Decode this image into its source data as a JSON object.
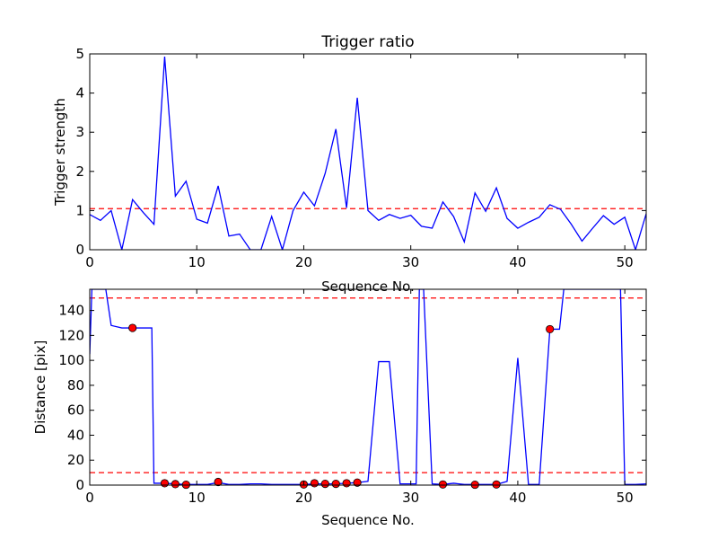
{
  "chart_data": [
    {
      "type": "line",
      "title": "Trigger ratio",
      "xlabel": "Sequence No.",
      "ylabel": "Trigger strength",
      "xlim": [
        0,
        52
      ],
      "ylim": [
        0,
        5
      ],
      "xticks": [
        0,
        10,
        20,
        30,
        40,
        50
      ],
      "yticks": [
        0,
        1,
        2,
        3,
        4,
        5
      ],
      "colors": {
        "line": "#0000ff",
        "threshold": "#ff0000"
      },
      "threshold_lines": [
        1.05
      ],
      "series": [
        {
          "x": [
            0,
            1,
            2,
            3,
            4,
            5,
            6,
            7,
            8,
            9,
            10,
            11,
            12,
            13,
            14,
            15,
            16,
            17,
            18,
            19,
            20,
            21,
            22,
            23,
            24,
            25,
            26,
            27,
            28,
            29,
            30,
            31,
            32,
            33,
            34,
            35,
            36,
            37,
            38,
            39,
            40,
            41,
            42,
            43,
            44,
            45,
            46,
            47,
            48,
            49,
            50,
            51,
            52
          ],
          "values": [
            0.9,
            0.75,
            1.0,
            0.0,
            1.28,
            0.95,
            0.65,
            4.93,
            1.37,
            1.75,
            0.78,
            0.68,
            1.63,
            0.35,
            0.4,
            0.0,
            0.0,
            0.85,
            0.0,
            1.0,
            1.47,
            1.12,
            1.95,
            3.08,
            1.07,
            3.88,
            1.0,
            0.75,
            0.9,
            0.8,
            0.88,
            0.6,
            0.55,
            1.22,
            0.85,
            0.2,
            1.45,
            0.98,
            1.58,
            0.8,
            0.55,
            0.7,
            0.83,
            1.15,
            1.03,
            0.65,
            0.22,
            0.55,
            0.87,
            0.65,
            0.83,
            0.0,
            0.92
          ]
        }
      ]
    },
    {
      "type": "line",
      "title": "",
      "xlabel": "Sequence No.",
      "ylabel": "Distance [pix]",
      "xlim": [
        0,
        52
      ],
      "ylim": [
        0,
        157
      ],
      "xticks": [
        0,
        10,
        20,
        30,
        40,
        50
      ],
      "yticks": [
        0,
        20,
        40,
        60,
        80,
        100,
        120,
        140
      ],
      "colors": {
        "line": "#0000ff",
        "marker": "#ff0000",
        "threshold": "#ff0000"
      },
      "threshold_lines": [
        10,
        150
      ],
      "series": [
        {
          "x": [
            0,
            0.2,
            1.3,
            1.5,
            2,
            3,
            4,
            5,
            5.3,
            5.8,
            6,
            7,
            8,
            9,
            10,
            11,
            12,
            13,
            14,
            15,
            16,
            17,
            18,
            19,
            20,
            21,
            22,
            23,
            24,
            25,
            26,
            27,
            28,
            29,
            30,
            30.5,
            30.8,
            31.2,
            32,
            33,
            34,
            35,
            36,
            37,
            38,
            39,
            40,
            41,
            41.5,
            42,
            43,
            43.5,
            43.9,
            44.3,
            49.2,
            49.6,
            50,
            51,
            52
          ],
          "values": [
            105,
            157,
            157,
            157,
            128,
            126,
            126,
            126,
            126,
            126,
            1.5,
            1.5,
            1,
            0.5,
            0.5,
            0.5,
            2,
            0.5,
            0.5,
            1,
            1,
            0.5,
            0.5,
            0.5,
            0.5,
            1,
            1,
            1,
            1.5,
            2,
            3,
            99,
            99,
            1,
            1,
            1,
            157,
            157,
            1,
            0.5,
            1.5,
            0.5,
            0.5,
            0.5,
            0.5,
            3,
            102,
            0.5,
            0.5,
            0.5,
            125,
            125,
            125,
            157,
            157,
            157,
            0.5,
            0.5,
            1
          ]
        }
      ],
      "markers": {
        "x": [
          4,
          7,
          8,
          9,
          12,
          20,
          21,
          22,
          23,
          24,
          25,
          33,
          36,
          38,
          43
        ],
        "values": [
          126,
          1.5,
          0.8,
          0.3,
          2.5,
          0.5,
          1.5,
          1,
          1,
          1.5,
          2,
          0.5,
          0.3,
          0.5,
          125
        ]
      }
    }
  ]
}
